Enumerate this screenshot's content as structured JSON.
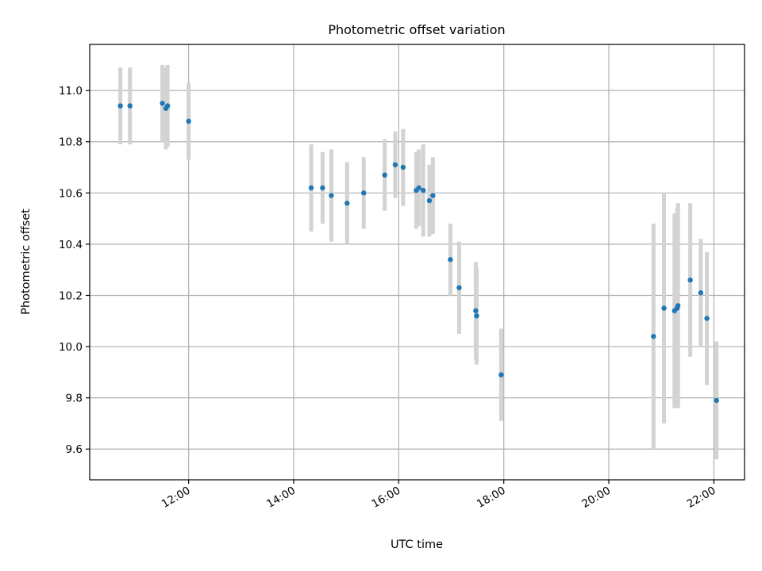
{
  "chart_data": {
    "type": "scatter",
    "title": "Photometric offset variation",
    "xlabel": "UTC time",
    "ylabel": "Photometric offset",
    "xlim": [
      "10:07",
      "22:35"
    ],
    "ylim": [
      9.48,
      11.18
    ],
    "x_ticks": [
      "12:00",
      "14:00",
      "16:00",
      "18:00",
      "20:00",
      "22:00"
    ],
    "y_ticks": [
      "9.6",
      "9.8",
      "10.0",
      "10.2",
      "10.4",
      "10.6",
      "10.8",
      "11.0"
    ],
    "grid": true,
    "marker_color": "#1f77b4",
    "errorbar_color": "#d3d3d3",
    "points": [
      {
        "t": "10:42",
        "y": 10.94,
        "err": 0.15
      },
      {
        "t": "10:53",
        "y": 10.94,
        "err": 0.15
      },
      {
        "t": "11:30",
        "y": 10.95,
        "err": 0.15
      },
      {
        "t": "11:34",
        "y": 10.93,
        "err": 0.16
      },
      {
        "t": "11:36",
        "y": 10.94,
        "err": 0.16
      },
      {
        "t": "12:00",
        "y": 10.88,
        "err": 0.15
      },
      {
        "t": "14:20",
        "y": 10.62,
        "err": 0.17
      },
      {
        "t": "14:33",
        "y": 10.62,
        "err": 0.14
      },
      {
        "t": "14:43",
        "y": 10.59,
        "err": 0.18
      },
      {
        "t": "15:01",
        "y": 10.56,
        "err": 0.16
      },
      {
        "t": "15:20",
        "y": 10.6,
        "err": 0.14
      },
      {
        "t": "15:44",
        "y": 10.67,
        "err": 0.14
      },
      {
        "t": "15:56",
        "y": 10.71,
        "err": 0.13
      },
      {
        "t": "16:05",
        "y": 10.7,
        "err": 0.15
      },
      {
        "t": "16:20",
        "y": 10.61,
        "err": 0.15
      },
      {
        "t": "16:23",
        "y": 10.62,
        "err": 0.15
      },
      {
        "t": "16:28",
        "y": 10.61,
        "err": 0.18
      },
      {
        "t": "16:35",
        "y": 10.57,
        "err": 0.14
      },
      {
        "t": "16:39",
        "y": 10.59,
        "err": 0.15
      },
      {
        "t": "16:59",
        "y": 10.34,
        "err": 0.14
      },
      {
        "t": "17:09",
        "y": 10.23,
        "err": 0.18
      },
      {
        "t": "17:28",
        "y": 10.14,
        "err": 0.19
      },
      {
        "t": "17:29",
        "y": 10.12,
        "err": 0.19
      },
      {
        "t": "17:57",
        "y": 9.89,
        "err": 0.18
      },
      {
        "t": "20:51",
        "y": 10.04,
        "err": 0.44
      },
      {
        "t": "21:03",
        "y": 10.15,
        "err": 0.45
      },
      {
        "t": "21:15",
        "y": 10.14,
        "err": 0.38
      },
      {
        "t": "21:18",
        "y": 10.15,
        "err": 0.39
      },
      {
        "t": "21:19",
        "y": 10.16,
        "err": 0.4
      },
      {
        "t": "21:33",
        "y": 10.26,
        "err": 0.3
      },
      {
        "t": "21:45",
        "y": 10.21,
        "err": 0.21
      },
      {
        "t": "21:52",
        "y": 10.11,
        "err": 0.26
      },
      {
        "t": "22:03",
        "y": 9.79,
        "err": 0.23
      }
    ]
  }
}
